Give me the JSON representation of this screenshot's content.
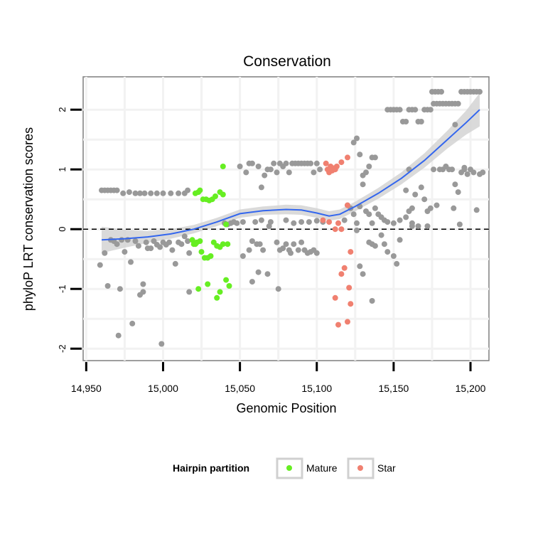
{
  "chart_data": {
    "type": "scatter",
    "title": "Conservation",
    "xlabel": "Genomic Position",
    "ylabel": "phyloP LRT conservation scores",
    "xlim": [
      14948,
      15212
    ],
    "ylim": [
      -2.2,
      2.55
    ],
    "x_ticks": [
      14950,
      15000,
      15050,
      15100,
      15150,
      15200
    ],
    "x_tick_labels": [
      "14,950",
      "15,000",
      "15,050",
      "15,100",
      "15,150",
      "15,200"
    ],
    "y_ticks": [
      -2,
      -1,
      0,
      1,
      2
    ],
    "y_tick_labels": [
      "-2",
      "-1",
      "0",
      "1",
      "2"
    ],
    "reference_line": {
      "y": 0,
      "style": "dashed"
    },
    "legend": {
      "title": "Hairpin partition",
      "position": "bottom",
      "entries": [
        {
          "label": "Mature",
          "color": "#66ee22"
        },
        {
          "label": "Star",
          "color": "#f08070"
        }
      ]
    },
    "colors": {
      "other": "#999999",
      "mature": "#66ee22",
      "star": "#f08070",
      "smooth": "#3366ee",
      "band": "#d4d4d4"
    },
    "series": [
      {
        "name": "Other",
        "points": [
          [
            14960,
            0.65
          ],
          [
            14962,
            0.65
          ],
          [
            14964,
            0.65
          ],
          [
            14966,
            0.65
          ],
          [
            14968,
            0.65
          ],
          [
            14970,
            0.65
          ],
          [
            14974,
            0.6
          ],
          [
            14978,
            0.62
          ],
          [
            14982,
            0.6
          ],
          [
            14985,
            0.6
          ],
          [
            14988,
            0.6
          ],
          [
            14992,
            0.6
          ],
          [
            14996,
            0.6
          ],
          [
            15000,
            0.6
          ],
          [
            15005,
            0.6
          ],
          [
            15010,
            0.6
          ],
          [
            15014,
            0.6
          ],
          [
            15016,
            0.65
          ],
          [
            14959,
            -0.6
          ],
          [
            14962,
            -0.4
          ],
          [
            14964,
            -0.95
          ],
          [
            14966,
            -0.18
          ],
          [
            14968,
            -0.2
          ],
          [
            14970,
            -0.25
          ],
          [
            14972,
            -1.0
          ],
          [
            14973,
            -0.18
          ],
          [
            14975,
            -0.38
          ],
          [
            14977,
            -0.18
          ],
          [
            14979,
            -0.55
          ],
          [
            14980,
            -1.58
          ],
          [
            14982,
            -0.2
          ],
          [
            14984,
            -0.28
          ],
          [
            14985,
            -1.1
          ],
          [
            14987,
            -0.92
          ],
          [
            14987,
            -1.05
          ],
          [
            14989,
            -0.22
          ],
          [
            14990,
            -0.32
          ],
          [
            14992,
            -0.32
          ],
          [
            14994,
            -0.2
          ],
          [
            14996,
            -0.26
          ],
          [
            14998,
            -0.3
          ],
          [
            15000,
            -0.22
          ],
          [
            15002,
            -0.26
          ],
          [
            15004,
            -0.22
          ],
          [
            15006,
            -0.35
          ],
          [
            15008,
            -0.58
          ],
          [
            15010,
            -0.22
          ],
          [
            15012,
            -0.25
          ],
          [
            15014,
            -0.12
          ],
          [
            15016,
            -0.2
          ],
          [
            15017,
            -0.4
          ],
          [
            14971,
            -1.78
          ],
          [
            14999,
            -1.92
          ],
          [
            15017,
            -1.05
          ],
          [
            15040,
            0.1
          ],
          [
            15042,
            0.08
          ],
          [
            15044,
            0.1
          ],
          [
            15046,
            0.12
          ],
          [
            15048,
            0.1
          ],
          [
            15050,
            1.05
          ],
          [
            15052,
            0.12
          ],
          [
            15054,
            0.95
          ],
          [
            15056,
            1.1
          ],
          [
            15058,
            1.1
          ],
          [
            15060,
            0.12
          ],
          [
            15062,
            1.05
          ],
          [
            15064,
            0.7
          ],
          [
            15066,
            0.9
          ],
          [
            15068,
            1.0
          ],
          [
            15070,
            1.0
          ],
          [
            15072,
            1.1
          ],
          [
            15074,
            0.95
          ],
          [
            15076,
            1.1
          ],
          [
            15078,
            1.05
          ],
          [
            15080,
            1.1
          ],
          [
            15082,
            0.95
          ],
          [
            15084,
            1.1
          ],
          [
            15086,
            1.1
          ],
          [
            15088,
            1.1
          ],
          [
            15090,
            1.1
          ],
          [
            15092,
            1.1
          ],
          [
            15094,
            1.1
          ],
          [
            15096,
            1.1
          ],
          [
            15098,
            0.95
          ],
          [
            15100,
            1.1
          ],
          [
            15102,
            1.0
          ],
          [
            15052,
            -0.45
          ],
          [
            15056,
            -0.35
          ],
          [
            15058,
            -0.2
          ],
          [
            15061,
            -0.25
          ],
          [
            15063,
            -0.25
          ],
          [
            15065,
            -0.35
          ],
          [
            15068,
            -0.75
          ],
          [
            15069,
            0.05
          ],
          [
            15074,
            -0.22
          ],
          [
            15076,
            -0.35
          ],
          [
            15078,
            -0.32
          ],
          [
            15080,
            -0.25
          ],
          [
            15082,
            -0.35
          ],
          [
            15083,
            -0.4
          ],
          [
            15085,
            -0.25
          ],
          [
            15088,
            -0.35
          ],
          [
            15090,
            -0.22
          ],
          [
            15092,
            -0.35
          ],
          [
            15094,
            -0.4
          ],
          [
            15096,
            -0.38
          ],
          [
            15098,
            -0.35
          ],
          [
            15100,
            -0.4
          ],
          [
            15075,
            -1.0
          ],
          [
            15058,
            -0.88
          ],
          [
            15062,
            -0.72
          ],
          [
            15064,
            0.15
          ],
          [
            15070,
            0.12
          ],
          [
            15080,
            0.15
          ],
          [
            15085,
            0.1
          ],
          [
            15090,
            0.12
          ],
          [
            15095,
            0.12
          ],
          [
            15100,
            0.14
          ],
          [
            15104,
            0.12
          ],
          [
            15118,
            0.15
          ],
          [
            15120,
            0.4
          ],
          [
            15122,
            0.35
          ],
          [
            15124,
            0.25
          ],
          [
            15126,
            0.1
          ],
          [
            15128,
            0.38
          ],
          [
            15130,
            0.75
          ],
          [
            15132,
            0.95
          ],
          [
            15134,
            1.05
          ],
          [
            15136,
            1.2
          ],
          [
            15138,
            1.2
          ],
          [
            15126,
            1.52
          ],
          [
            15124,
            1.45
          ],
          [
            15128,
            1.25
          ],
          [
            15130,
            0.9
          ],
          [
            15132,
            0.3
          ],
          [
            15134,
            0.25
          ],
          [
            15136,
            0.1
          ],
          [
            15138,
            0.35
          ],
          [
            15140,
            0.25
          ],
          [
            15142,
            0.2
          ],
          [
            15144,
            0.15
          ],
          [
            15146,
            0.12
          ],
          [
            15150,
            0.1
          ],
          [
            15154,
            0.15
          ],
          [
            15158,
            0.2
          ],
          [
            15162,
            0.1
          ],
          [
            15126,
            -0.02
          ],
          [
            15128,
            -0.62
          ],
          [
            15130,
            -0.75
          ],
          [
            15134,
            -0.22
          ],
          [
            15136,
            -0.25
          ],
          [
            15138,
            -0.28
          ],
          [
            15142,
            -0.1
          ],
          [
            15146,
            -0.38
          ],
          [
            15150,
            -0.45
          ],
          [
            15152,
            -0.58
          ],
          [
            15144,
            -0.25
          ],
          [
            15136,
            -1.2
          ],
          [
            15154,
            -0.18
          ],
          [
            15160,
            0.3
          ],
          [
            15162,
            0.05
          ],
          [
            15146,
            2.0
          ],
          [
            15148,
            2.0
          ],
          [
            15150,
            2.0
          ],
          [
            15152,
            2.0
          ],
          [
            15154,
            2.0
          ],
          [
            15156,
            1.8
          ],
          [
            15158,
            1.8
          ],
          [
            15160,
            2.0
          ],
          [
            15162,
            2.0
          ],
          [
            15164,
            2.0
          ],
          [
            15166,
            1.8
          ],
          [
            15168,
            1.8
          ],
          [
            15170,
            2.0
          ],
          [
            15172,
            2.0
          ],
          [
            15174,
            2.0
          ],
          [
            15176,
            2.1
          ],
          [
            15178,
            2.1
          ],
          [
            15180,
            2.1
          ],
          [
            15182,
            2.1
          ],
          [
            15184,
            2.1
          ],
          [
            15186,
            2.1
          ],
          [
            15188,
            2.1
          ],
          [
            15190,
            2.1
          ],
          [
            15192,
            2.1
          ],
          [
            15175,
            2.3
          ],
          [
            15177,
            2.3
          ],
          [
            15179,
            2.3
          ],
          [
            15181,
            2.3
          ],
          [
            15194,
            2.3
          ],
          [
            15196,
            2.3
          ],
          [
            15198,
            2.3
          ],
          [
            15200,
            2.3
          ],
          [
            15202,
            2.3
          ],
          [
            15204,
            2.3
          ],
          [
            15206,
            2.3
          ],
          [
            15158,
            0.65
          ],
          [
            15160,
            1.0
          ],
          [
            15162,
            0.35
          ],
          [
            15164,
            0.58
          ],
          [
            15166,
            0.05
          ],
          [
            15168,
            0.7
          ],
          [
            15170,
            0.5
          ],
          [
            15172,
            0.3
          ],
          [
            15174,
            0.35
          ],
          [
            15176,
            1.0
          ],
          [
            15178,
            0.4
          ],
          [
            15180,
            1.0
          ],
          [
            15182,
            1.0
          ],
          [
            15184,
            1.05
          ],
          [
            15186,
            1.0
          ],
          [
            15188,
            1.0
          ],
          [
            15190,
            0.75
          ],
          [
            15192,
            0.62
          ],
          [
            15194,
            0.95
          ],
          [
            15196,
            1.0
          ],
          [
            15198,
            0.92
          ],
          [
            15200,
            1.0
          ],
          [
            15202,
            0.95
          ],
          [
            15204,
            0.32
          ],
          [
            15206,
            0.92
          ],
          [
            15208,
            0.95
          ],
          [
            15196,
            1.03
          ],
          [
            15189,
            0.35
          ],
          [
            15190,
            1.75
          ],
          [
            15193,
            0.08
          ],
          [
            15172,
            0.05
          ]
        ]
      },
      {
        "name": "Mature",
        "points": [
          [
            15021,
            0.6
          ],
          [
            15023,
            0.62
          ],
          [
            15024,
            0.65
          ],
          [
            15026,
            0.5
          ],
          [
            15028,
            0.5
          ],
          [
            15030,
            0.48
          ],
          [
            15032,
            0.5
          ],
          [
            15034,
            0.55
          ],
          [
            15037,
            0.62
          ],
          [
            15039,
            0.58
          ],
          [
            15039,
            1.05
          ],
          [
            15041,
            0.08
          ],
          [
            15019,
            -0.18
          ],
          [
            15020,
            -0.25
          ],
          [
            15021,
            -0.25
          ],
          [
            15022,
            -0.22
          ],
          [
            15024,
            -0.2
          ],
          [
            15025,
            -0.38
          ],
          [
            15027,
            -0.48
          ],
          [
            15029,
            -0.48
          ],
          [
            15031,
            -0.45
          ],
          [
            15033,
            -0.22
          ],
          [
            15035,
            -0.28
          ],
          [
            15037,
            -0.3
          ],
          [
            15039,
            -0.25
          ],
          [
            15042,
            -0.25
          ],
          [
            15023,
            -1.0
          ],
          [
            15029,
            -0.92
          ],
          [
            15035,
            -1.15
          ],
          [
            15037,
            -1.05
          ],
          [
            15041,
            -0.85
          ],
          [
            15043,
            -0.95
          ]
        ]
      },
      {
        "name": "Star",
        "points": [
          [
            15106,
            1.1
          ],
          [
            15107,
            1.0
          ],
          [
            15108,
            0.95
          ],
          [
            15109,
            1.05
          ],
          [
            15110,
            0.98
          ],
          [
            15111,
            1.02
          ],
          [
            15112,
            1.0
          ],
          [
            15113,
            1.05
          ],
          [
            15116,
            1.12
          ],
          [
            15120,
            1.2
          ],
          [
            15104,
            0.15
          ],
          [
            15108,
            0.12
          ],
          [
            15112,
            0.0
          ],
          [
            15114,
            0.1
          ],
          [
            15116,
            0.0
          ],
          [
            15120,
            0.4
          ],
          [
            15112,
            -1.15
          ],
          [
            15114,
            -1.6
          ],
          [
            15116,
            -0.75
          ],
          [
            15118,
            -0.65
          ],
          [
            15120,
            -1.55
          ],
          [
            15121,
            -0.98
          ],
          [
            15122,
            -1.25
          ],
          [
            15122,
            -0.38
          ]
        ]
      }
    ],
    "smooth": [
      [
        14960,
        -0.18
      ],
      [
        14975,
        -0.16
      ],
      [
        14990,
        -0.13
      ],
      [
        15005,
        -0.08
      ],
      [
        15020,
        0.0
      ],
      [
        15035,
        0.12
      ],
      [
        15050,
        0.26
      ],
      [
        15065,
        0.31
      ],
      [
        15080,
        0.33
      ],
      [
        15090,
        0.32
      ],
      [
        15100,
        0.27
      ],
      [
        15108,
        0.22
      ],
      [
        15115,
        0.25
      ],
      [
        15125,
        0.38
      ],
      [
        15140,
        0.6
      ],
      [
        15155,
        0.85
      ],
      [
        15170,
        1.15
      ],
      [
        15185,
        1.5
      ],
      [
        15197,
        1.78
      ],
      [
        15206,
        2.0
      ]
    ],
    "band_halfwidth": [
      0.22,
      0.15,
      0.1,
      0.08,
      0.07,
      0.07,
      0.07,
      0.07,
      0.08,
      0.08,
      0.08,
      0.08,
      0.08,
      0.08,
      0.09,
      0.1,
      0.12,
      0.15,
      0.2,
      0.28
    ]
  }
}
